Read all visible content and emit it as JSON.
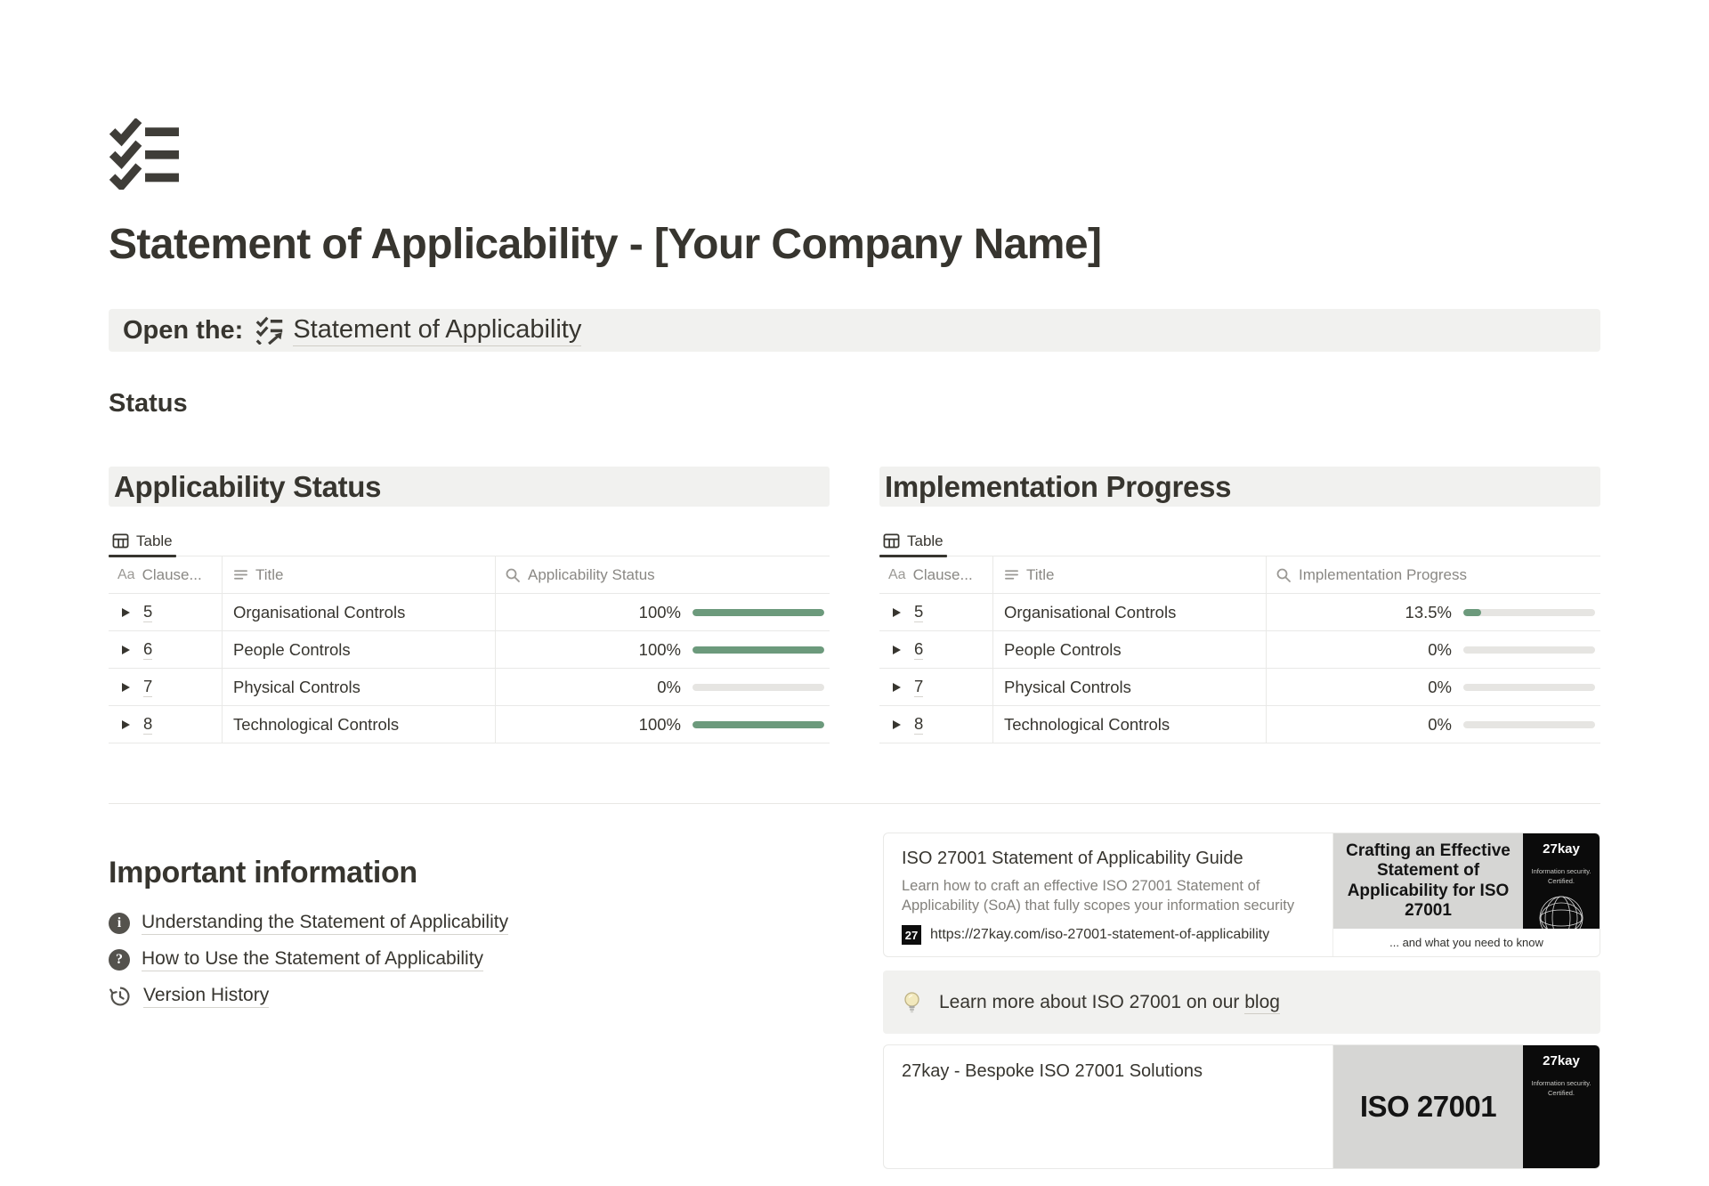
{
  "page": {
    "title": "Statement of Applicability - [Your Company Name]"
  },
  "callout": {
    "label": "Open the:",
    "link_text": "Statement of Applicability"
  },
  "status": {
    "heading": "Status"
  },
  "icons": {
    "title_property_glyph": "Aa",
    "favicon_glyph": "27"
  },
  "tables": [
    {
      "header": "Applicability Status",
      "view_tab": "Table",
      "columns": {
        "clause": "Clause...",
        "title": "Title",
        "metric": "Applicability Status"
      },
      "rows": [
        {
          "clause": "5",
          "title": "Organisational Controls",
          "percent_label": "100%",
          "percent": 100
        },
        {
          "clause": "6",
          "title": "People Controls",
          "percent_label": "100%",
          "percent": 100
        },
        {
          "clause": "7",
          "title": "Physical Controls",
          "percent_label": "0%",
          "percent": 0
        },
        {
          "clause": "8",
          "title": "Technological Controls",
          "percent_label": "100%",
          "percent": 100
        }
      ]
    },
    {
      "header": "Implementation Progress",
      "view_tab": "Table",
      "columns": {
        "clause": "Clause...",
        "title": "Title",
        "metric": "Implementation Progress"
      },
      "rows": [
        {
          "clause": "5",
          "title": "Organisational Controls",
          "percent_label": "13.5%",
          "percent": 13.5
        },
        {
          "clause": "6",
          "title": "People Controls",
          "percent_label": "0%",
          "percent": 0
        },
        {
          "clause": "7",
          "title": "Physical Controls",
          "percent_label": "0%",
          "percent": 0
        },
        {
          "clause": "8",
          "title": "Technological Controls",
          "percent_label": "0%",
          "percent": 0
        }
      ]
    }
  ],
  "important": {
    "heading": "Important information",
    "links": [
      {
        "label": "Understanding the Statement of Applicability"
      },
      {
        "label": "How to Use the Statement of Applicability"
      },
      {
        "label": "Version History"
      }
    ]
  },
  "bookmark1": {
    "title": "ISO 27001 Statement of Applicability Guide",
    "description": "Learn how to craft an effective ISO 27001 Statement of Applicability (SoA) that fully scopes your information security",
    "url": "https://27kay.com/iso-27001-statement-of-applicability",
    "preview_headline": "Crafting an Effective Statement of Applicability for ISO 27001",
    "preview_brand": "27kay",
    "preview_brand_sub": "Information security. Certified.",
    "preview_caption": "... and what you need to know"
  },
  "blog_callout": {
    "text": "Learn more about ISO 27001 on our",
    "link_text": "blog"
  },
  "bookmark2": {
    "title": "27kay - Bespoke ISO 27001 Solutions",
    "preview_headline": "ISO 27001",
    "preview_brand": "27kay",
    "preview_brand_sub": "Information security. Certified."
  },
  "colors": {
    "progress_green": "#6c9a7c",
    "callout_bg": "#f1f1ef",
    "table_border": "#e9e9e7",
    "text_primary": "#37352f",
    "text_secondary": "#8a8884"
  }
}
